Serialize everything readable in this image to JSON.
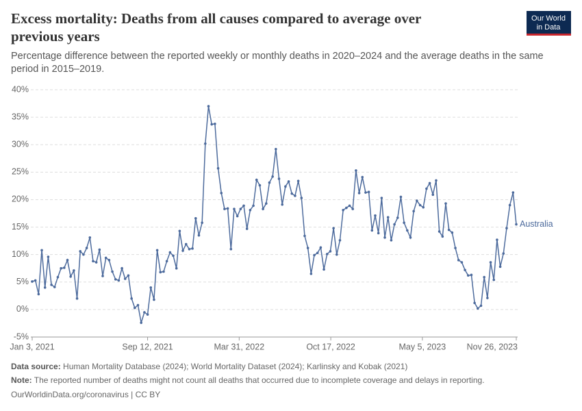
{
  "chart_data": {
    "type": "line",
    "title": [
      "Excess mortality: Deaths from all causes compared to average over",
      "previous years"
    ],
    "subtitle": [
      "Percentage difference between the reported weekly or monthly deaths in 2020–2024 and the average deaths in the same",
      "period in 2015–2019."
    ],
    "logo": [
      "Our World",
      "in Data"
    ],
    "x": [
      "2021-01-03",
      "2021-01-10",
      "2021-01-17",
      "2021-01-24",
      "2021-01-31",
      "2021-02-07",
      "2021-02-14",
      "2021-02-21",
      "2021-02-28",
      "2021-03-07",
      "2021-03-14",
      "2021-03-21",
      "2021-03-28",
      "2021-04-04",
      "2021-04-11",
      "2021-04-18",
      "2021-04-25",
      "2021-05-02",
      "2021-05-09",
      "2021-05-16",
      "2021-05-23",
      "2021-05-30",
      "2021-06-06",
      "2021-06-13",
      "2021-06-20",
      "2021-06-27",
      "2021-07-04",
      "2021-07-11",
      "2021-07-18",
      "2021-07-25",
      "2021-08-01",
      "2021-08-08",
      "2021-08-15",
      "2021-08-22",
      "2021-08-29",
      "2021-09-05",
      "2021-09-12",
      "2021-09-19",
      "2021-09-26",
      "2021-10-03",
      "2021-10-10",
      "2021-10-17",
      "2021-10-24",
      "2021-10-31",
      "2021-11-07",
      "2021-11-14",
      "2021-11-21",
      "2021-11-28",
      "2021-12-05",
      "2021-12-12",
      "2021-12-19",
      "2021-12-26",
      "2022-01-02",
      "2022-01-09",
      "2022-01-16",
      "2022-01-23",
      "2022-01-30",
      "2022-02-06",
      "2022-02-13",
      "2022-02-20",
      "2022-02-27",
      "2022-03-06",
      "2022-03-13",
      "2022-03-20",
      "2022-03-27",
      "2022-04-03",
      "2022-04-10",
      "2022-04-17",
      "2022-04-24",
      "2022-05-01",
      "2022-05-08",
      "2022-05-15",
      "2022-05-22",
      "2022-05-29",
      "2022-06-05",
      "2022-06-12",
      "2022-06-19",
      "2022-06-26",
      "2022-07-03",
      "2022-07-10",
      "2022-07-17",
      "2022-07-24",
      "2022-07-31",
      "2022-08-07",
      "2022-08-14",
      "2022-08-21",
      "2022-08-28",
      "2022-09-04",
      "2022-09-11",
      "2022-09-18",
      "2022-09-25",
      "2022-10-02",
      "2022-10-09",
      "2022-10-16",
      "2022-10-23",
      "2022-10-30",
      "2022-11-06",
      "2022-11-13",
      "2022-11-20",
      "2022-11-27",
      "2022-12-04",
      "2022-12-11",
      "2022-12-18",
      "2022-12-25",
      "2023-01-01",
      "2023-01-08",
      "2023-01-15",
      "2023-01-22",
      "2023-01-29",
      "2023-02-05",
      "2023-02-12",
      "2023-02-19",
      "2023-02-26",
      "2023-03-05",
      "2023-03-12",
      "2023-03-19",
      "2023-03-26",
      "2023-04-02",
      "2023-04-09",
      "2023-04-16",
      "2023-04-23",
      "2023-04-30",
      "2023-05-07",
      "2023-05-14",
      "2023-05-21",
      "2023-05-28",
      "2023-06-04",
      "2023-06-11",
      "2023-06-18",
      "2023-06-25",
      "2023-07-02",
      "2023-07-09",
      "2023-07-16",
      "2023-07-23",
      "2023-07-30",
      "2023-08-06",
      "2023-08-13",
      "2023-08-20",
      "2023-08-27",
      "2023-09-03",
      "2023-09-10",
      "2023-09-17",
      "2023-09-24",
      "2023-10-01",
      "2023-10-08",
      "2023-10-15",
      "2023-10-22",
      "2023-10-29",
      "2023-11-05",
      "2023-11-12",
      "2023-11-19",
      "2023-11-26"
    ],
    "series": [
      {
        "name": "Australia",
        "color": "#4c6a9c",
        "values": [
          5.1,
          5.3,
          2.8,
          10.8,
          4.0,
          9.6,
          4.5,
          4.1,
          5.9,
          7.5,
          7.6,
          9.0,
          6.0,
          7.1,
          2.0,
          10.6,
          10.0,
          11.2,
          13.1,
          8.8,
          8.6,
          10.9,
          6.1,
          9.4,
          9.0,
          6.9,
          5.5,
          5.3,
          7.5,
          5.6,
          6.2,
          2.0,
          0.3,
          0.8,
          -2.4,
          -0.5,
          -0.9,
          4.0,
          1.8,
          10.8,
          6.8,
          6.9,
          8.8,
          10.4,
          9.8,
          7.5,
          14.3,
          10.7,
          11.9,
          11.0,
          11.1,
          16.6,
          13.5,
          15.8,
          30.2,
          37.0,
          33.7,
          33.8,
          25.7,
          21.2,
          18.3,
          18.4,
          11.0,
          18.3,
          17.0,
          18.3,
          18.9,
          14.7,
          18.1,
          18.9,
          23.6,
          22.6,
          18.3,
          19.3,
          23.1,
          24.2,
          29.2,
          23.8,
          19.1,
          22.4,
          23.3,
          21.1,
          20.7,
          23.4,
          20.3,
          13.4,
          11.2,
          6.5,
          9.9,
          10.3,
          11.3,
          7.3,
          10.1,
          10.6,
          14.8,
          10.0,
          12.6,
          18.1,
          18.5,
          18.9,
          18.3,
          25.3,
          21.2,
          24.1,
          21.3,
          21.4,
          14.4,
          17.1,
          13.9,
          20.3,
          13.1,
          16.8,
          12.6,
          15.5,
          16.7,
          20.5,
          15.8,
          14.4,
          13.1,
          17.9,
          19.8,
          19.0,
          18.6,
          22.0,
          23.0,
          20.9,
          23.5,
          14.2,
          13.3,
          19.3,
          14.5,
          14.0,
          11.2,
          9.0,
          8.6,
          7.2,
          6.2,
          6.3,
          1.2,
          0.2,
          0.7,
          5.9,
          2.1,
          8.6,
          5.4,
          12.7,
          7.8,
          10.2,
          14.8,
          19.0,
          21.3,
          15.5
        ]
      }
    ],
    "xlim": [
      "2021-01-03",
      "2023-11-26"
    ],
    "xticks": [
      {
        "value": "2021-01-03",
        "label": "Jan 3, 2021"
      },
      {
        "value": "2021-09-12",
        "label": "Sep 12, 2021"
      },
      {
        "value": "2022-03-31",
        "label": "Mar 31, 2022"
      },
      {
        "value": "2022-10-17",
        "label": "Oct 17, 2022"
      },
      {
        "value": "2023-05-05",
        "label": "May 5, 2023"
      },
      {
        "value": "2023-11-26",
        "label": "Nov 26, 2023"
      }
    ],
    "ylim": [
      -5,
      40
    ],
    "yticks": [
      {
        "value": -5,
        "label": "-5%"
      },
      {
        "value": 0,
        "label": "0%"
      },
      {
        "value": 5,
        "label": "5%"
      },
      {
        "value": 10,
        "label": "10%"
      },
      {
        "value": 15,
        "label": "15%"
      },
      {
        "value": 20,
        "label": "20%"
      },
      {
        "value": 25,
        "label": "25%"
      },
      {
        "value": 30,
        "label": "30%"
      },
      {
        "value": 35,
        "label": "35%"
      },
      {
        "value": 40,
        "label": "40%"
      }
    ],
    "grid": true,
    "notes": {
      "source_label": "Data source:",
      "source": "Human Mortality Database (2024); World Mortality Dataset (2024); Karlinsky and Kobak (2021)",
      "note_label": "Note:",
      "note": "The reported number of deaths might not count all deaths that occurred due to incomplete coverage and delays in reporting.",
      "credit": "OurWorldinData.org/coronavirus | CC BY"
    }
  }
}
